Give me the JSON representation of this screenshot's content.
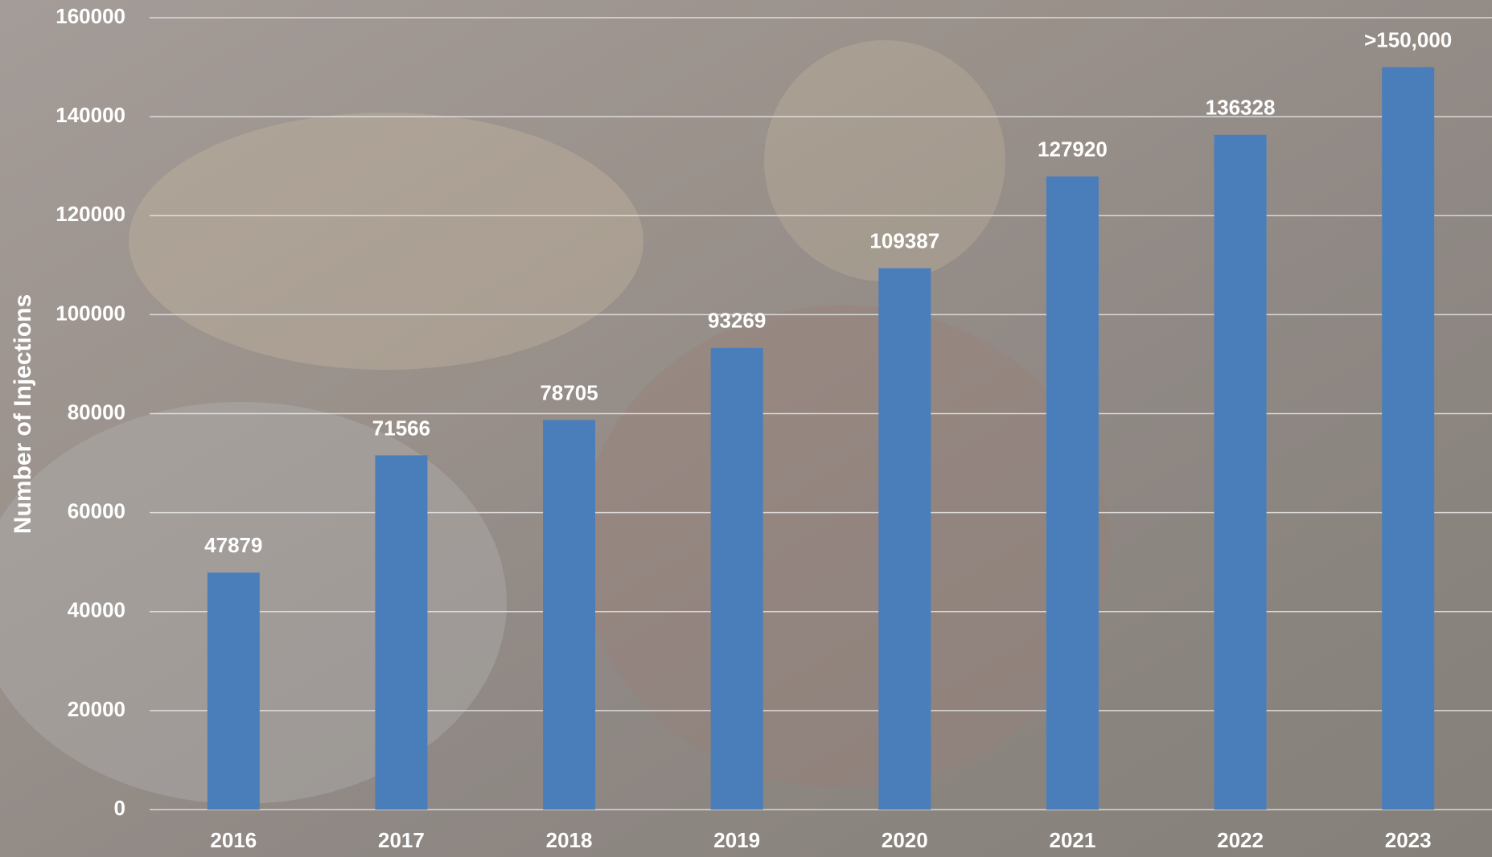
{
  "chart_data": {
    "type": "bar",
    "y_label": "Number of Injections",
    "categories": [
      "2016",
      "2017",
      "2018",
      "2019",
      "2020",
      "2021",
      "2022",
      "2023"
    ],
    "values": [
      47879,
      71566,
      78705,
      93269,
      109387,
      127920,
      136328,
      150000
    ],
    "value_labels": [
      "47879",
      "71566",
      "78705",
      "93269",
      "109387",
      "127920",
      "136328",
      ">150,000"
    ],
    "color": "#4a7ebb",
    "ylim": [
      0,
      160000
    ],
    "yticks": [
      0,
      20000,
      40000,
      60000,
      80000,
      100000,
      120000,
      140000,
      160000
    ],
    "grid": true
  }
}
